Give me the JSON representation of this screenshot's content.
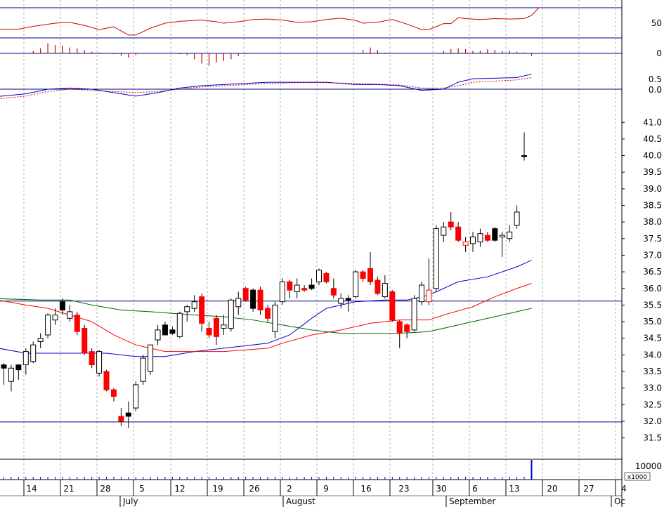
{
  "chart_data": {
    "type": "candlestick",
    "colors": {
      "up_fill": "#ffffff",
      "down_fill": "#ff0000",
      "black_fill": "#000000",
      "ma_short": "#0000cc",
      "ma_mid": "#ff0000",
      "ma_long": "#006600",
      "frame": "#000080",
      "grid": "#b0b0b0"
    },
    "price_axis": {
      "ticks": [
        "41.0",
        "40.5",
        "40.0",
        "39.5",
        "39.0",
        "38.5",
        "38.0",
        "37.5",
        "37.0",
        "36.5",
        "36.0",
        "35.5",
        "35.0",
        "34.5",
        "34.0",
        "33.5",
        "33.0",
        "32.5",
        "32.0",
        "31.5"
      ],
      "range": [
        31.2,
        41.6
      ],
      "reference_lines": [
        35.62,
        31.98
      ]
    },
    "oscillator_axis": {
      "ticks": [
        "50"
      ]
    },
    "histogram_axis": {
      "ticks": [
        "0"
      ]
    },
    "macd_axis": {
      "ticks": [
        "0.5",
        "0.0"
      ]
    },
    "volume_axis": {
      "ticks": [
        "10000"
      ],
      "multiplier_label": "x1000"
    },
    "x_day_labels": [
      "14",
      "21",
      "28",
      "5",
      "12",
      "19",
      "26",
      "2",
      "9",
      "16",
      "23",
      "30",
      "6",
      "13",
      "20",
      "27",
      "4"
    ],
    "x_month_labels": [
      "July",
      "August",
      "September",
      "Oc"
    ],
    "candles": [
      {
        "o": 33.7,
        "h": 33.75,
        "l": 33.1,
        "c": 33.6,
        "t": "k"
      },
      {
        "o": 33.2,
        "h": 33.7,
        "l": 32.9,
        "c": 33.6,
        "t": "u"
      },
      {
        "o": 33.55,
        "h": 33.7,
        "l": 33.25,
        "c": 33.7,
        "t": "k"
      },
      {
        "o": 33.7,
        "h": 34.2,
        "l": 33.4,
        "c": 34.1,
        "t": "u"
      },
      {
        "o": 33.8,
        "h": 34.4,
        "l": 33.75,
        "c": 34.3,
        "t": "u"
      },
      {
        "o": 34.4,
        "h": 34.65,
        "l": 34.2,
        "c": 34.5,
        "t": "u"
      },
      {
        "o": 34.6,
        "h": 35.25,
        "l": 34.5,
        "c": 35.2,
        "t": "u"
      },
      {
        "o": 35.05,
        "h": 35.4,
        "l": 34.9,
        "c": 35.2,
        "t": "u"
      },
      {
        "o": 35.35,
        "h": 35.7,
        "l": 35.2,
        "c": 35.6,
        "t": "k"
      },
      {
        "o": 35.3,
        "h": 35.5,
        "l": 35.0,
        "c": 35.1,
        "t": "u"
      },
      {
        "o": 35.2,
        "h": 35.3,
        "l": 34.6,
        "c": 34.7,
        "t": "d"
      },
      {
        "o": 34.8,
        "h": 34.9,
        "l": 34.0,
        "c": 34.05,
        "t": "d"
      },
      {
        "o": 34.1,
        "h": 34.2,
        "l": 33.6,
        "c": 33.7,
        "t": "d"
      },
      {
        "o": 33.45,
        "h": 34.15,
        "l": 33.35,
        "c": 34.1,
        "t": "u"
      },
      {
        "o": 33.5,
        "h": 33.55,
        "l": 32.9,
        "c": 32.95,
        "t": "d"
      },
      {
        "o": 32.95,
        "h": 33.0,
        "l": 32.6,
        "c": 32.75,
        "t": "d"
      },
      {
        "o": 32.15,
        "h": 32.4,
        "l": 31.85,
        "c": 32.0,
        "t": "d"
      },
      {
        "o": 32.15,
        "h": 32.6,
        "l": 31.8,
        "c": 32.25,
        "t": "k"
      },
      {
        "o": 32.4,
        "h": 33.2,
        "l": 32.3,
        "c": 33.1,
        "t": "u"
      },
      {
        "o": 33.2,
        "h": 34.0,
        "l": 33.1,
        "c": 33.9,
        "t": "u"
      },
      {
        "o": 33.5,
        "h": 34.3,
        "l": 33.4,
        "c": 34.3,
        "t": "u"
      },
      {
        "o": 34.45,
        "h": 34.9,
        "l": 34.3,
        "c": 34.75,
        "t": "u"
      },
      {
        "o": 34.9,
        "h": 35.0,
        "l": 34.6,
        "c": 34.6,
        "t": "k"
      },
      {
        "o": 34.75,
        "h": 34.85,
        "l": 34.6,
        "c": 34.65,
        "t": "k"
      },
      {
        "o": 34.55,
        "h": 35.3,
        "l": 34.5,
        "c": 35.25,
        "t": "u"
      },
      {
        "o": 35.3,
        "h": 35.5,
        "l": 35.0,
        "c": 35.45,
        "t": "u"
      },
      {
        "o": 35.6,
        "h": 35.8,
        "l": 35.3,
        "c": 35.4,
        "t": "u"
      },
      {
        "o": 35.75,
        "h": 35.85,
        "l": 34.7,
        "c": 34.95,
        "t": "d"
      },
      {
        "o": 34.8,
        "h": 35.0,
        "l": 34.5,
        "c": 34.6,
        "t": "d"
      },
      {
        "o": 35.1,
        "h": 35.2,
        "l": 34.3,
        "c": 34.55,
        "t": "d"
      },
      {
        "o": 34.8,
        "h": 35.2,
        "l": 34.6,
        "c": 34.9,
        "t": "u"
      },
      {
        "o": 34.8,
        "h": 35.7,
        "l": 34.7,
        "c": 35.65,
        "t": "u"
      },
      {
        "o": 35.45,
        "h": 35.9,
        "l": 35.2,
        "c": 35.7,
        "t": "u"
      },
      {
        "o": 36.0,
        "h": 36.05,
        "l": 35.6,
        "c": 35.65,
        "t": "d"
      },
      {
        "o": 35.95,
        "h": 36.0,
        "l": 35.3,
        "c": 35.4,
        "t": "k"
      },
      {
        "o": 35.95,
        "h": 36.05,
        "l": 35.2,
        "c": 35.35,
        "t": "d"
      },
      {
        "o": 35.4,
        "h": 35.5,
        "l": 35.0,
        "c": 35.1,
        "t": "d"
      },
      {
        "o": 34.7,
        "h": 35.6,
        "l": 34.5,
        "c": 35.5,
        "t": "u"
      },
      {
        "o": 35.6,
        "h": 36.3,
        "l": 35.5,
        "c": 36.2,
        "t": "u"
      },
      {
        "o": 36.2,
        "h": 36.25,
        "l": 35.7,
        "c": 35.95,
        "t": "d"
      },
      {
        "o": 35.9,
        "h": 36.3,
        "l": 35.7,
        "c": 36.1,
        "t": "u"
      },
      {
        "o": 36.0,
        "h": 36.1,
        "l": 35.9,
        "c": 35.95,
        "t": "d"
      },
      {
        "o": 36.0,
        "h": 36.3,
        "l": 35.95,
        "c": 36.1,
        "t": "k"
      },
      {
        "o": 36.2,
        "h": 36.6,
        "l": 36.1,
        "c": 36.55,
        "t": "u"
      },
      {
        "o": 36.45,
        "h": 36.5,
        "l": 36.15,
        "c": 36.2,
        "t": "d"
      },
      {
        "o": 36.0,
        "h": 36.3,
        "l": 35.7,
        "c": 35.8,
        "t": "d"
      },
      {
        "o": 35.55,
        "h": 35.85,
        "l": 35.4,
        "c": 35.7,
        "t": "u"
      },
      {
        "o": 35.65,
        "h": 35.8,
        "l": 35.3,
        "c": 35.7,
        "t": "k"
      },
      {
        "o": 35.75,
        "h": 36.55,
        "l": 35.7,
        "c": 36.5,
        "t": "u"
      },
      {
        "o": 36.5,
        "h": 36.55,
        "l": 36.2,
        "c": 36.3,
        "t": "d"
      },
      {
        "o": 36.6,
        "h": 37.1,
        "l": 36.1,
        "c": 36.2,
        "t": "d"
      },
      {
        "o": 36.25,
        "h": 36.35,
        "l": 35.8,
        "c": 35.85,
        "t": "d"
      },
      {
        "o": 35.75,
        "h": 36.4,
        "l": 35.7,
        "c": 36.15,
        "t": "u"
      },
      {
        "o": 35.9,
        "h": 35.95,
        "l": 35.0,
        "c": 35.05,
        "t": "d"
      },
      {
        "o": 35.0,
        "h": 35.05,
        "l": 34.2,
        "c": 34.65,
        "t": "d"
      },
      {
        "o": 34.9,
        "h": 34.95,
        "l": 34.5,
        "c": 34.7,
        "t": "d"
      },
      {
        "o": 34.75,
        "h": 35.8,
        "l": 34.7,
        "c": 35.7,
        "t": "u"
      },
      {
        "o": 35.6,
        "h": 36.2,
        "l": 35.5,
        "c": 36.1,
        "t": "u"
      },
      {
        "o": 35.95,
        "h": 36.9,
        "l": 35.5,
        "c": 35.6,
        "t": "ur"
      },
      {
        "o": 36.0,
        "h": 37.9,
        "l": 35.9,
        "c": 37.8,
        "t": "u"
      },
      {
        "o": 37.6,
        "h": 38.0,
        "l": 37.4,
        "c": 37.85,
        "t": "u"
      },
      {
        "o": 38.0,
        "h": 38.3,
        "l": 37.75,
        "c": 37.85,
        "t": "d"
      },
      {
        "o": 37.85,
        "h": 38.0,
        "l": 37.4,
        "c": 37.45,
        "t": "d"
      },
      {
        "o": 37.3,
        "h": 37.55,
        "l": 37.1,
        "c": 37.4,
        "t": "ur"
      },
      {
        "o": 37.35,
        "h": 37.7,
        "l": 37.1,
        "c": 37.55,
        "t": "u"
      },
      {
        "o": 37.4,
        "h": 37.8,
        "l": 37.25,
        "c": 37.65,
        "t": "u"
      },
      {
        "o": 37.6,
        "h": 37.7,
        "l": 37.4,
        "c": 37.45,
        "t": "d"
      },
      {
        "o": 37.45,
        "h": 37.85,
        "l": 37.4,
        "c": 37.8,
        "t": "k"
      },
      {
        "o": 37.55,
        "h": 37.7,
        "l": 36.95,
        "c": 37.6,
        "t": "u"
      },
      {
        "o": 37.5,
        "h": 37.9,
        "l": 37.4,
        "c": 37.7,
        "t": "u"
      },
      {
        "o": 37.9,
        "h": 38.5,
        "l": 37.8,
        "c": 38.3,
        "t": "u"
      },
      {
        "o": 40.0,
        "h": 40.7,
        "l": 39.85,
        "c": 40.0,
        "t": "k"
      }
    ],
    "moving_averages": [
      {
        "color": "#0000cc",
        "points": [
          [
            -2,
            34.25
          ],
          [
            3,
            34.05
          ],
          [
            8,
            34.05
          ],
          [
            12,
            34.05
          ],
          [
            14,
            34.05
          ],
          [
            18,
            33.95
          ],
          [
            22,
            33.95
          ],
          [
            26,
            34.1
          ],
          [
            30,
            34.2
          ],
          [
            34,
            34.3
          ],
          [
            36,
            34.35
          ],
          [
            39,
            34.6
          ],
          [
            42,
            35.1
          ],
          [
            44,
            35.4
          ],
          [
            48,
            35.6
          ],
          [
            52,
            35.65
          ],
          [
            55,
            35.65
          ],
          [
            58,
            35.8
          ],
          [
            60,
            36.0
          ],
          [
            62,
            36.2
          ],
          [
            66,
            36.35
          ],
          [
            70,
            36.65
          ],
          [
            72,
            36.85
          ]
        ]
      },
      {
        "color": "#ff0000",
        "points": [
          [
            -2,
            35.7
          ],
          [
            3,
            35.5
          ],
          [
            6,
            35.4
          ],
          [
            9,
            35.2
          ],
          [
            12,
            35.0
          ],
          [
            15,
            34.6
          ],
          [
            18,
            34.3
          ],
          [
            22,
            34.1
          ],
          [
            26,
            34.1
          ],
          [
            30,
            34.1
          ],
          [
            33,
            34.15
          ],
          [
            36,
            34.2
          ],
          [
            38,
            34.35
          ],
          [
            42,
            34.6
          ],
          [
            46,
            34.75
          ],
          [
            50,
            34.95
          ],
          [
            54,
            35.05
          ],
          [
            58,
            35.05
          ],
          [
            60,
            35.2
          ],
          [
            64,
            35.45
          ],
          [
            67,
            35.75
          ],
          [
            70,
            36.0
          ],
          [
            72,
            36.15
          ]
        ]
      },
      {
        "color": "#006600",
        "points": [
          [
            -2,
            35.7
          ],
          [
            5,
            35.65
          ],
          [
            9,
            35.65
          ],
          [
            12,
            35.5
          ],
          [
            16,
            35.35
          ],
          [
            20,
            35.3
          ],
          [
            26,
            35.2
          ],
          [
            30,
            35.15
          ],
          [
            34,
            35.05
          ],
          [
            38,
            34.9
          ],
          [
            42,
            34.75
          ],
          [
            46,
            34.65
          ],
          [
            50,
            34.65
          ],
          [
            54,
            34.65
          ],
          [
            58,
            34.7
          ],
          [
            61,
            34.85
          ],
          [
            64,
            35.0
          ],
          [
            67,
            35.15
          ],
          [
            70,
            35.3
          ],
          [
            72,
            35.4
          ]
        ]
      }
    ],
    "oscillator_line": {
      "color": "#cc0000",
      "points": [
        [
          -2,
          37
        ],
        [
          2,
          37
        ],
        [
          4,
          43
        ],
        [
          7,
          50
        ],
        [
          9,
          52
        ],
        [
          11,
          45
        ],
        [
          13,
          36
        ],
        [
          15,
          42
        ],
        [
          17,
          24
        ],
        [
          18,
          24
        ],
        [
          20,
          39
        ],
        [
          22,
          50
        ],
        [
          24,
          54
        ],
        [
          27,
          57
        ],
        [
          29,
          53
        ],
        [
          30,
          50
        ],
        [
          32,
          53
        ],
        [
          34,
          58
        ],
        [
          36,
          59
        ],
        [
          38,
          57
        ],
        [
          40,
          52
        ],
        [
          42,
          53
        ],
        [
          44,
          58
        ],
        [
          46,
          61
        ],
        [
          48,
          56
        ],
        [
          49,
          50
        ],
        [
          51,
          52
        ],
        [
          53,
          58
        ],
        [
          55,
          48
        ],
        [
          57,
          36
        ],
        [
          58,
          36
        ],
        [
          60,
          49
        ],
        [
          61,
          49
        ],
        [
          62,
          62
        ],
        [
          63,
          60
        ],
        [
          65,
          58
        ],
        [
          67,
          60
        ],
        [
          69,
          59
        ],
        [
          71,
          60
        ],
        [
          72,
          67
        ],
        [
          73,
          84
        ]
      ]
    },
    "histogram_bars": [
      0,
      0,
      0,
      0,
      0.15,
      0.3,
      0.6,
      0.5,
      0.45,
      0.35,
      0.3,
      0.2,
      0.1,
      0.05,
      0,
      -0.05,
      -0.15,
      -0.25,
      -0.1,
      0,
      0,
      0,
      0,
      0,
      -0.05,
      -0.1,
      -0.35,
      -0.6,
      -0.75,
      -0.55,
      -0.45,
      -0.35,
      -0.15,
      -0.05,
      0,
      0,
      0,
      0,
      0,
      0,
      0,
      0,
      0,
      0,
      0,
      0,
      0,
      0,
      0,
      0.2,
      0.35,
      0.2,
      0.05,
      0,
      0,
      0,
      0,
      0,
      0,
      0,
      0.15,
      0.25,
      0.3,
      0.25,
      0.15,
      0.15,
      0.25,
      0.2,
      0.15,
      0.15,
      0.1,
      0.05,
      -0.15
    ],
    "macd_lines": [
      {
        "color": "#0000cc",
        "style": "solid",
        "points": [
          [
            -2,
            -0.35
          ],
          [
            3,
            -0.2
          ],
          [
            6,
            0.0
          ],
          [
            9,
            0.05
          ],
          [
            12,
            0.0
          ],
          [
            15,
            -0.15
          ],
          [
            18,
            -0.3
          ],
          [
            21,
            -0.15
          ],
          [
            24,
            0.05
          ],
          [
            27,
            0.15
          ],
          [
            30,
            0.2
          ],
          [
            33,
            0.25
          ],
          [
            36,
            0.3
          ],
          [
            40,
            0.3
          ],
          [
            44,
            0.3
          ],
          [
            48,
            0.2
          ],
          [
            51,
            0.2
          ],
          [
            54,
            0.15
          ],
          [
            57,
            -0.05
          ],
          [
            60,
            0.0
          ],
          [
            62,
            0.3
          ],
          [
            64,
            0.45
          ],
          [
            70,
            0.5
          ],
          [
            72,
            0.65
          ]
        ]
      },
      {
        "color": "#cc0000",
        "style": "dashed",
        "points": [
          [
            -2,
            -0.45
          ],
          [
            3,
            -0.3
          ],
          [
            6,
            -0.1
          ],
          [
            9,
            0.0
          ],
          [
            12,
            -0.05
          ],
          [
            15,
            -0.1
          ],
          [
            18,
            -0.15
          ],
          [
            21,
            -0.1
          ],
          [
            24,
            0.0
          ],
          [
            27,
            0.1
          ],
          [
            30,
            0.15
          ],
          [
            33,
            0.2
          ],
          [
            36,
            0.25
          ],
          [
            40,
            0.28
          ],
          [
            44,
            0.28
          ],
          [
            48,
            0.25
          ],
          [
            51,
            0.22
          ],
          [
            54,
            0.18
          ],
          [
            57,
            0.05
          ],
          [
            60,
            0.05
          ],
          [
            62,
            0.15
          ],
          [
            64,
            0.3
          ],
          [
            70,
            0.4
          ],
          [
            72,
            0.5
          ]
        ]
      }
    ],
    "volume_bars": [
      {
        "i": 72,
        "v": 1.0
      }
    ]
  }
}
